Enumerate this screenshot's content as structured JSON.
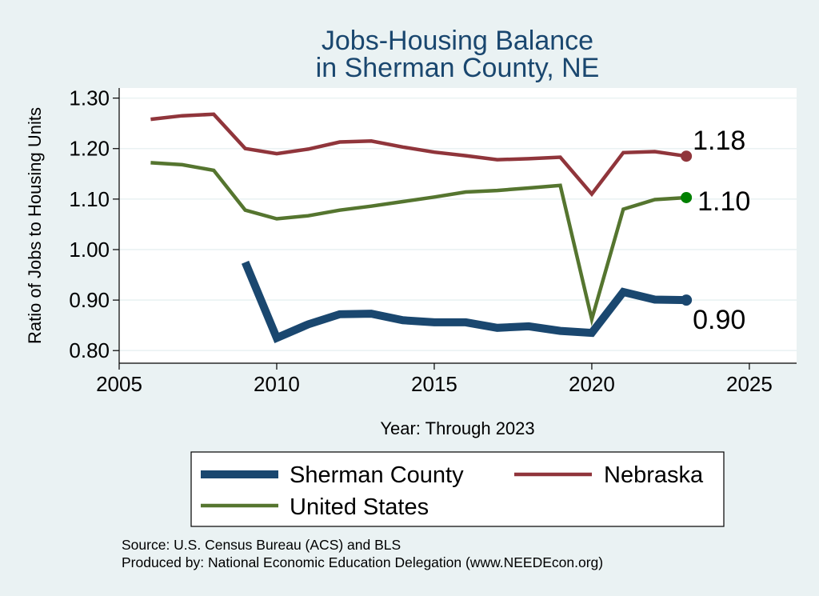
{
  "chart_data": {
    "type": "line",
    "title_lines": [
      "Jobs-Housing Balance",
      "in Sherman County, NE"
    ],
    "xlabel": "Year: Through 2023",
    "ylabel": "Ratio of Jobs to Housing Units",
    "xlim": [
      2005,
      2026.5
    ],
    "ylim": [
      0.775,
      1.32
    ],
    "x_ticks": [
      2005,
      2010,
      2015,
      2020,
      2025
    ],
    "x_tick_labels": [
      "2005",
      "2010",
      "2015",
      "2020",
      "2025"
    ],
    "y_ticks": [
      0.8,
      0.9,
      1.0,
      1.1,
      1.2,
      1.3
    ],
    "y_tick_labels": [
      "0.80",
      "0.90",
      "1.00",
      "1.10",
      "1.20",
      "1.30"
    ],
    "grid": true,
    "legend_position": "bottom",
    "series": [
      {
        "name": "Sherman County",
        "color": "#1a476f",
        "width": "thick",
        "x": [
          2009,
          2010,
          2011,
          2012,
          2013,
          2014,
          2015,
          2016,
          2017,
          2018,
          2019,
          2020,
          2021,
          2022,
          2023
        ],
        "values": [
          0.975,
          0.825,
          0.852,
          0.872,
          0.873,
          0.86,
          0.856,
          0.856,
          0.845,
          0.848,
          0.839,
          0.835,
          0.916,
          0.901,
          0.9
        ],
        "end_label": "0.90"
      },
      {
        "name": "Nebraska",
        "color": "#90353b",
        "width": "normal",
        "x": [
          2006,
          2007,
          2008,
          2009,
          2010,
          2011,
          2012,
          2013,
          2014,
          2015,
          2016,
          2017,
          2018,
          2019,
          2020,
          2021,
          2022,
          2023
        ],
        "values": [
          1.258,
          1.265,
          1.268,
          1.2,
          1.19,
          1.199,
          1.213,
          1.215,
          1.203,
          1.193,
          1.186,
          1.178,
          1.18,
          1.183,
          1.11,
          1.192,
          1.194,
          1.185
        ],
        "end_label": "1.18"
      },
      {
        "name": "United States",
        "color": "#55752f",
        "width": "normal",
        "x": [
          2006,
          2007,
          2008,
          2009,
          2010,
          2011,
          2012,
          2013,
          2014,
          2015,
          2016,
          2017,
          2018,
          2019,
          2020,
          2021,
          2022,
          2023
        ],
        "values": [
          1.172,
          1.168,
          1.157,
          1.078,
          1.061,
          1.067,
          1.078,
          1.086,
          1.095,
          1.104,
          1.114,
          1.117,
          1.122,
          1.127,
          0.862,
          1.08,
          1.099,
          1.103
        ],
        "end_label": "1.10"
      }
    ],
    "end_marker_colors": [
      "#1a476f",
      "#90353b",
      "#008000"
    ]
  },
  "source_lines": [
    "Source: U.S. Census Bureau (ACS) and BLS",
    "Produced by: National Economic Education Delegation (www.NEEDEcon.org)"
  ]
}
